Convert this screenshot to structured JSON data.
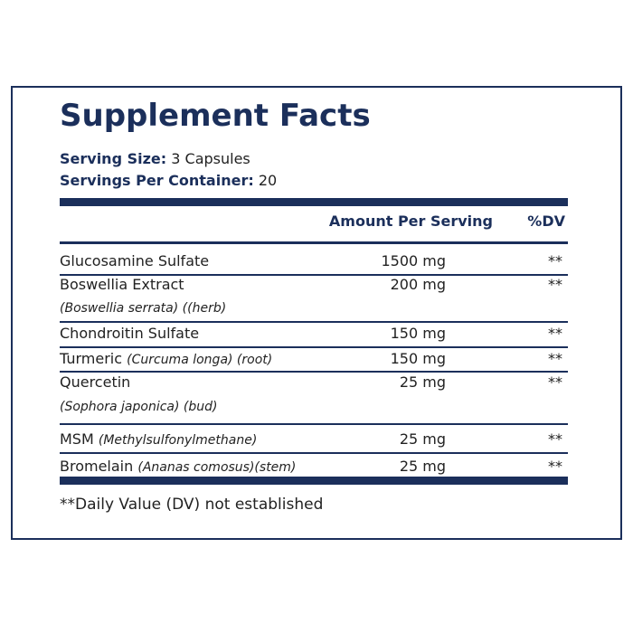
{
  "title": "Supplement Facts",
  "serving_size": {
    "label": "Serving Size:",
    "value": "3 Capsules"
  },
  "servings_per_container": {
    "label": "Servings Per Container:",
    "value": "20"
  },
  "table": {
    "headers": {
      "amount": "Amount Per Serving",
      "dv": "%DV"
    },
    "rows": [
      {
        "name": "Glucosamine Sulfate",
        "detail": null,
        "amount": "1500 mg",
        "dv": "**"
      },
      {
        "name": "Boswellia Extract",
        "detail": "(Boswellia serrata) ((herb)",
        "amount": "200 mg",
        "dv": "**"
      },
      {
        "name": "Chondroitin Sulfate",
        "detail": null,
        "amount": "150 mg",
        "dv": "**"
      },
      {
        "name": "Turmeric",
        "detail": "(Curcuma longa) (root)",
        "amount": "150 mg",
        "dv": "**"
      },
      {
        "name": "Quercetin",
        "detail": "(Sophora japonica) (bud)",
        "amount": "25 mg",
        "dv": "**"
      },
      {
        "name": "MSM",
        "detail": "(Methylsulfonylmethane)",
        "amount": "25 mg",
        "dv": "**"
      },
      {
        "name": "Bromelain",
        "detail": "(Ananas comosus)(stem)",
        "amount": "25 mg",
        "dv": "**"
      }
    ]
  },
  "footnote": "**Daily Value (DV) not established"
}
